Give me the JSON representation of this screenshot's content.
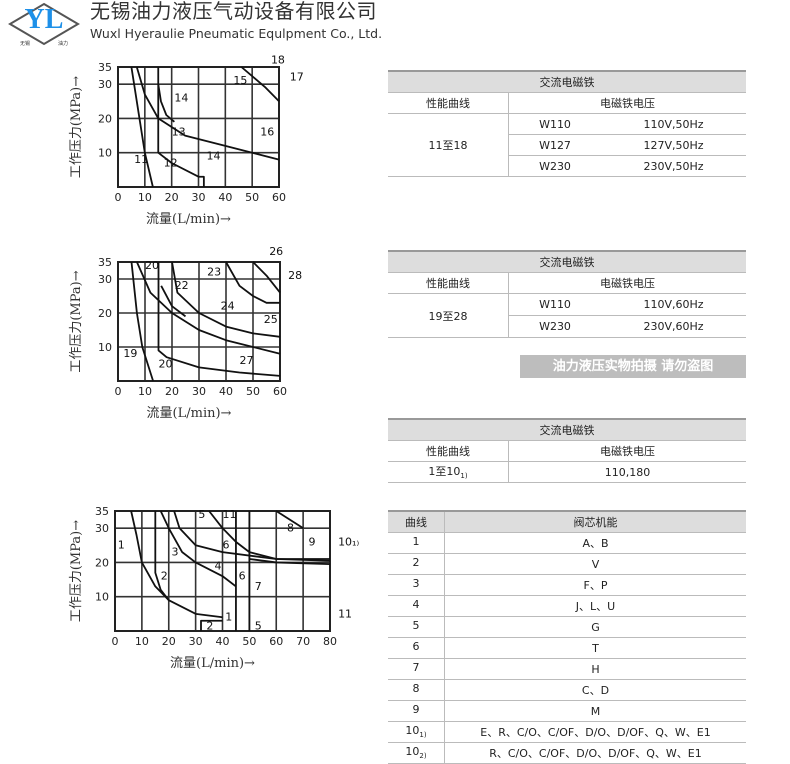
{
  "header": {
    "company_cn": "无锡油力液压气动设备有限公司",
    "company_en": "Wuxl Hyeraulie Pneumatic Equlpment Co., Ltd.",
    "logo_text": "YL",
    "logo_left": "无锡",
    "logo_right": "油力",
    "brand_color": "#1e90e8"
  },
  "chart_data": [
    {
      "type": "line",
      "xlabel": "流量(L/min)→",
      "ylabel": "工作压力(MPa)→",
      "xlim": [
        0,
        60
      ],
      "ylim": [
        0,
        35
      ],
      "xticks": [
        0,
        10,
        20,
        30,
        40,
        50,
        60
      ],
      "yticks": [
        10,
        20,
        30,
        35
      ],
      "grid": true,
      "series": [
        {
          "points": [
            [
              5,
              35
            ],
            [
              8,
              20
            ],
            [
              10,
              10
            ],
            [
              13,
              0
            ]
          ]
        },
        {
          "points": [
            [
              7,
              35
            ],
            [
              10,
              27
            ],
            [
              15,
              20
            ],
            [
              25,
              15
            ],
            [
              40,
              12
            ],
            [
              50,
              10
            ],
            [
              60,
              8
            ]
          ]
        },
        {
          "points": [
            [
              15,
              30
            ],
            [
              16,
              25
            ],
            [
              18,
              21
            ],
            [
              21,
              19
            ]
          ]
        },
        {
          "points": [
            [
              15,
              35
            ],
            [
              15,
              10
            ],
            [
              20,
              7
            ],
            [
              30,
              3
            ],
            [
              32,
              3
            ],
            [
              32,
              0
            ]
          ]
        },
        {
          "points": [
            [
              46,
              35
            ],
            [
              55,
              29
            ],
            [
              60,
              25
            ]
          ]
        }
      ],
      "labels": [
        {
          "text": "11",
          "x": 6,
          "y": 7
        },
        {
          "text": "12",
          "x": 17,
          "y": 6
        },
        {
          "text": "13",
          "x": 20,
          "y": 15
        },
        {
          "text": "14",
          "x": 21,
          "y": 25
        },
        {
          "text": "14",
          "x": 33,
          "y": 8
        },
        {
          "text": "15",
          "x": 43,
          "y": 30
        },
        {
          "text": "16",
          "x": 53,
          "y": 15
        },
        {
          "text": "18",
          "x": 57,
          "y": 36
        },
        {
          "text": "17",
          "x": 64,
          "y": 31
        }
      ]
    },
    {
      "type": "line",
      "xlabel": "流量(L/min)→",
      "ylabel": "工作压力(MPa)→",
      "xlim": [
        0,
        60
      ],
      "ylim": [
        0,
        35
      ],
      "xticks": [
        0,
        10,
        20,
        30,
        40,
        50,
        60
      ],
      "yticks": [
        10,
        20,
        30,
        35
      ],
      "grid": true,
      "series": [
        {
          "points": [
            [
              5,
              35
            ],
            [
              7,
              20
            ],
            [
              9,
              10
            ],
            [
              13,
              0
            ]
          ]
        },
        {
          "points": [
            [
              7,
              35
            ],
            [
              12,
              26
            ],
            [
              20,
              20
            ],
            [
              30,
              15
            ],
            [
              40,
              12
            ],
            [
              50,
              10
            ],
            [
              60,
              8
            ]
          ]
        },
        {
          "points": [
            [
              15,
              35
            ],
            [
              15,
              9
            ],
            [
              18,
              7
            ],
            [
              30,
              4
            ],
            [
              45,
              2.5
            ],
            [
              60,
              1.5
            ]
          ]
        },
        {
          "points": [
            [
              16,
              28
            ],
            [
              20,
              22
            ],
            [
              25,
              19
            ]
          ]
        },
        {
          "points": [
            [
              20,
              35
            ],
            [
              22,
              26
            ],
            [
              30,
              20
            ],
            [
              40,
              16
            ],
            [
              50,
              14
            ],
            [
              60,
              13
            ]
          ]
        },
        {
          "points": [
            [
              40,
              35
            ],
            [
              45,
              28
            ],
            [
              50,
              25
            ],
            [
              55,
              23
            ],
            [
              60,
              23
            ]
          ]
        },
        {
          "points": [
            [
              50,
              35
            ],
            [
              55,
              31
            ],
            [
              60,
              26
            ]
          ]
        }
      ],
      "labels": [
        {
          "text": "19",
          "x": 2,
          "y": 7
        },
        {
          "text": "20",
          "x": 10,
          "y": 33
        },
        {
          "text": "20",
          "x": 15,
          "y": 4
        },
        {
          "text": "22",
          "x": 21,
          "y": 27
        },
        {
          "text": "23",
          "x": 33,
          "y": 31
        },
        {
          "text": "24",
          "x": 38,
          "y": 21
        },
        {
          "text": "25",
          "x": 54,
          "y": 17
        },
        {
          "text": "26",
          "x": 56,
          "y": 37
        },
        {
          "text": "27",
          "x": 45,
          "y": 5
        },
        {
          "text": "28",
          "x": 63,
          "y": 30
        }
      ]
    },
    {
      "type": "line",
      "xlabel": "流量(L/min)→",
      "ylabel": "工作压力(MPa)→",
      "xlim": [
        0,
        80
      ],
      "ylim": [
        0,
        35
      ],
      "xticks": [
        0,
        10,
        20,
        30,
        40,
        50,
        60,
        70,
        80
      ],
      "yticks": [
        10,
        20,
        30,
        35
      ],
      "grid": true,
      "series": [
        {
          "points": [
            [
              6,
              35
            ],
            [
              8,
              28
            ],
            [
              10,
              20
            ],
            [
              15,
              13
            ],
            [
              20,
              9
            ],
            [
              30,
              5
            ],
            [
              40,
              4
            ]
          ]
        },
        {
          "points": [
            [
              15,
              35
            ],
            [
              15,
              17
            ],
            [
              17,
              12
            ],
            [
              20,
              9
            ]
          ]
        },
        {
          "points": [
            [
              32,
              0
            ],
            [
              32,
              3
            ],
            [
              40,
              3
            ]
          ]
        },
        {
          "points": [
            [
              17,
              35
            ],
            [
              20,
              30
            ],
            [
              25,
              23
            ],
            [
              30,
              20
            ],
            [
              40,
              16
            ],
            [
              45,
              13
            ]
          ]
        },
        {
          "points": [
            [
              22,
              35
            ],
            [
              24,
              30
            ],
            [
              30,
              25
            ],
            [
              40,
              23
            ],
            [
              60,
              21
            ],
            [
              80,
              20.5
            ]
          ]
        },
        {
          "points": [
            [
              35,
              35
            ],
            [
              40,
              30
            ],
            [
              45,
              26
            ],
            [
              50,
              23
            ],
            [
              60,
              21
            ],
            [
              80,
              21
            ]
          ]
        },
        {
          "points": [
            [
              50,
              21
            ],
            [
              60,
              20
            ],
            [
              80,
              19.5
            ]
          ]
        },
        {
          "points": [
            [
              60,
              35
            ],
            [
              70,
              30
            ]
          ]
        },
        {
          "points": [
            [
              45,
              35
            ],
            [
              45,
              0
            ]
          ]
        },
        {
          "points": [
            [
              50,
              35
            ],
            [
              50,
              0
            ]
          ]
        }
      ],
      "labels": [
        {
          "text": "1",
          "x": 1,
          "y": 24
        },
        {
          "text": "2",
          "x": 17,
          "y": 15
        },
        {
          "text": "3",
          "x": 21,
          "y": 22
        },
        {
          "text": "4",
          "x": 37,
          "y": 18
        },
        {
          "text": "5",
          "x": 31,
          "y": 33
        },
        {
          "text": "11",
          "x": 40,
          "y": 33
        },
        {
          "text": "6",
          "x": 40,
          "y": 24
        },
        {
          "text": "6",
          "x": 46,
          "y": 15
        },
        {
          "text": "7",
          "x": 52,
          "y": 12
        },
        {
          "text": "8",
          "x": 64,
          "y": 29
        },
        {
          "text": "9",
          "x": 72,
          "y": 25
        },
        {
          "text": "10₁₎",
          "x": 83,
          "y": 25
        },
        {
          "text": "2",
          "x": 34,
          "y": 0.5
        },
        {
          "text": "1",
          "x": 41,
          "y": 3
        },
        {
          "text": "5",
          "x": 52,
          "y": 0.5
        },
        {
          "text": "11",
          "x": 83,
          "y": 4
        }
      ]
    }
  ],
  "table1": {
    "title": "交流电磁铁",
    "col1": "性能曲线",
    "col2": "电磁铁电压",
    "curve": "11至18",
    "rows": [
      [
        "W110",
        "110V,50Hz"
      ],
      [
        "W127",
        "127V,50Hz"
      ],
      [
        "W230",
        "230V,50Hz"
      ]
    ]
  },
  "table2": {
    "title": "交流电磁铁",
    "col1": "性能曲线",
    "col2": "电磁铁电压",
    "curve": "19至28",
    "rows": [
      [
        "W110",
        "110V,60Hz"
      ],
      [
        "W230",
        "230V,60Hz"
      ]
    ]
  },
  "watermark": "油力液压实物拍摄 请勿盗图",
  "table3": {
    "title": "交流电磁铁",
    "col1": "性能曲线",
    "col2": "电磁铁电压",
    "curve": "1至10",
    "curve_sub": "1)",
    "value": "110,180"
  },
  "table4": {
    "col1": "曲线",
    "col2": "阀芯机能",
    "rows": [
      [
        "1",
        "",
        "A、B"
      ],
      [
        "2",
        "",
        "V"
      ],
      [
        "3",
        "",
        "F、P"
      ],
      [
        "4",
        "",
        "J、L、U"
      ],
      [
        "5",
        "",
        "G"
      ],
      [
        "6",
        "",
        "T"
      ],
      [
        "7",
        "",
        "H"
      ],
      [
        "8",
        "",
        "C、D"
      ],
      [
        "9",
        "",
        "M"
      ],
      [
        "10",
        "1)",
        "E、R、C/O、C/OF、D/O、D/OF、Q、W、E1"
      ],
      [
        "10",
        "2)",
        "R、C/O、C/OF、D/O、D/OF、Q、W、E1"
      ]
    ]
  }
}
